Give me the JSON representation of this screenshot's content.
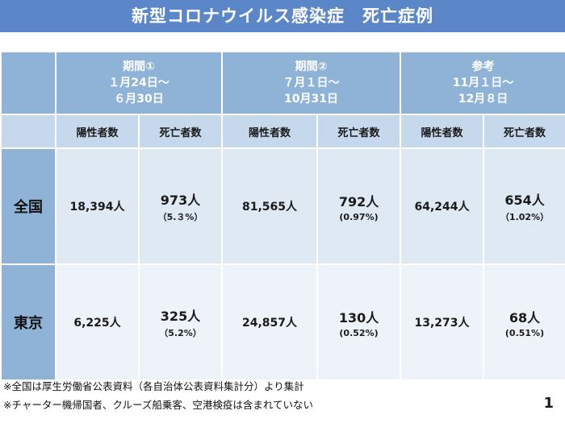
{
  "title": "新型コロナウイルス感染症　死亡症例",
  "periods": [
    {
      "name": "期間①",
      "start": "１月24日～",
      "end": "６月30日"
    },
    {
      "name": "期間②",
      "start": "７月１日～",
      "end": "10月31日"
    },
    {
      "name": "参考",
      "start": "11月１日～",
      "end": "12月８日"
    }
  ],
  "subheaders": {
    "positive": "陽性者数",
    "deaths": "死亡者数"
  },
  "rows": [
    {
      "label": "全国",
      "cells": [
        {
          "positive": "18,394人",
          "deaths": "973人",
          "rate": "（5.３%）"
        },
        {
          "positive": "81,565人",
          "deaths": "792人",
          "rate": "(0.97%)"
        },
        {
          "positive": "64,244人",
          "deaths": "654人",
          "rate": "（1.02%）"
        }
      ]
    },
    {
      "label": "東京",
      "cells": [
        {
          "positive": "6,225人",
          "deaths": "325人",
          "rate": "（5.2%）"
        },
        {
          "positive": "24,857人",
          "deaths": "130人",
          "rate": "(0.52%)"
        },
        {
          "positive": "13,273人",
          "deaths": "68人",
          "rate": "(0.51%)"
        }
      ]
    }
  ],
  "notes": [
    "※全国は厚生労働省公表資料（各自治体公表資料集計分）より集計",
    "※チャーター機帰国者、クルーズ船乗客、空港検疫は含まれていない"
  ],
  "page_number": "1"
}
